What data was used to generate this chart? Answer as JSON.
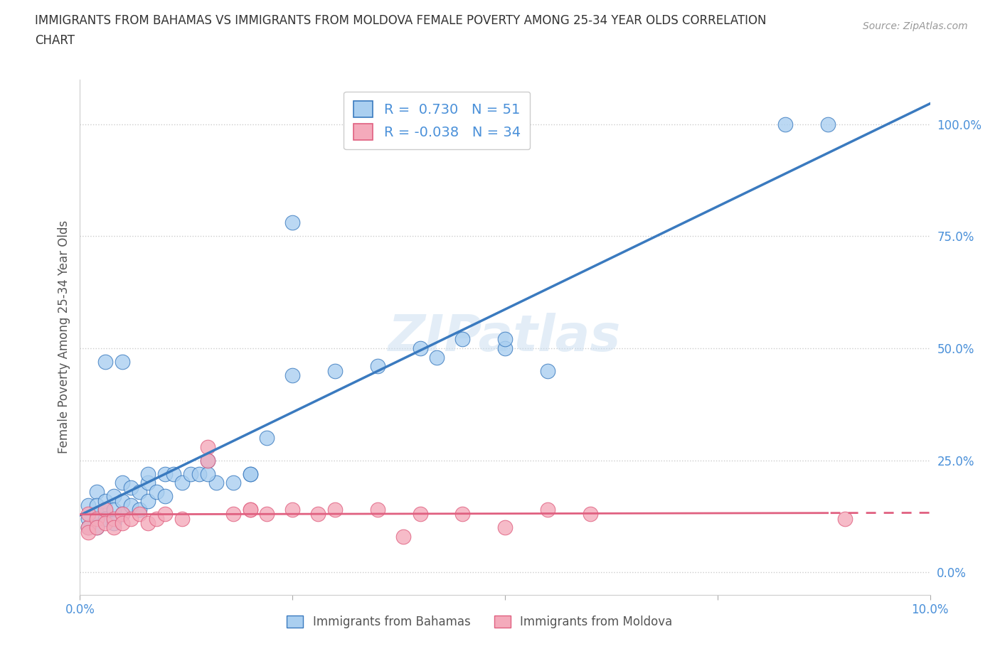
{
  "title_line1": "IMMIGRANTS FROM BAHAMAS VS IMMIGRANTS FROM MOLDOVA FEMALE POVERTY AMONG 25-34 YEAR OLDS CORRELATION",
  "title_line2": "CHART",
  "source": "Source: ZipAtlas.com",
  "ylabel": "Female Poverty Among 25-34 Year Olds",
  "xmin": 0.0,
  "xmax": 0.1,
  "ymin": -0.05,
  "ymax": 1.1,
  "yticks": [
    0.0,
    0.25,
    0.5,
    0.75,
    1.0
  ],
  "ytick_labels": [
    "0.0%",
    "25.0%",
    "50.0%",
    "75.0%",
    "100.0%"
  ],
  "xticks": [
    0.0,
    0.025,
    0.05,
    0.075,
    0.1
  ],
  "xtick_labels": [
    "0.0%",
    "",
    "",
    "",
    "10.0%"
  ],
  "r_bahamas": 0.73,
  "n_bahamas": 51,
  "r_moldova": -0.038,
  "n_moldova": 34,
  "color_bahamas": "#aacff0",
  "color_moldova": "#f4aabb",
  "line_color_bahamas": "#3a7abf",
  "line_color_moldova": "#e06080",
  "watermark": "ZIPatlas",
  "bahamas_x": [
    0.001,
    0.001,
    0.001,
    0.002,
    0.002,
    0.002,
    0.002,
    0.003,
    0.003,
    0.003,
    0.004,
    0.004,
    0.004,
    0.005,
    0.005,
    0.005,
    0.006,
    0.006,
    0.007,
    0.007,
    0.008,
    0.008,
    0.009,
    0.01,
    0.01,
    0.011,
    0.012,
    0.013,
    0.014,
    0.015,
    0.016,
    0.018,
    0.02,
    0.022,
    0.025,
    0.03,
    0.035,
    0.04,
    0.042,
    0.045,
    0.05,
    0.05,
    0.055,
    0.003,
    0.005,
    0.008,
    0.015,
    0.02,
    0.025,
    0.083,
    0.088
  ],
  "bahamas_y": [
    0.15,
    0.12,
    0.1,
    0.18,
    0.15,
    0.13,
    0.1,
    0.16,
    0.14,
    0.12,
    0.17,
    0.14,
    0.11,
    0.2,
    0.16,
    0.13,
    0.19,
    0.15,
    0.18,
    0.14,
    0.2,
    0.16,
    0.18,
    0.22,
    0.17,
    0.22,
    0.2,
    0.22,
    0.22,
    0.25,
    0.2,
    0.2,
    0.22,
    0.3,
    0.44,
    0.45,
    0.46,
    0.5,
    0.48,
    0.52,
    0.5,
    0.52,
    0.45,
    0.47,
    0.47,
    0.22,
    0.22,
    0.22,
    0.78,
    1.0,
    1.0
  ],
  "moldova_x": [
    0.001,
    0.001,
    0.001,
    0.002,
    0.002,
    0.003,
    0.003,
    0.004,
    0.004,
    0.005,
    0.005,
    0.006,
    0.007,
    0.008,
    0.009,
    0.01,
    0.012,
    0.015,
    0.018,
    0.02,
    0.022,
    0.025,
    0.028,
    0.03,
    0.035,
    0.04,
    0.045,
    0.05,
    0.055,
    0.06,
    0.015,
    0.02,
    0.038,
    0.09
  ],
  "moldova_y": [
    0.1,
    0.13,
    0.09,
    0.12,
    0.1,
    0.14,
    0.11,
    0.12,
    0.1,
    0.13,
    0.11,
    0.12,
    0.13,
    0.11,
    0.12,
    0.13,
    0.12,
    0.28,
    0.13,
    0.14,
    0.13,
    0.14,
    0.13,
    0.14,
    0.14,
    0.13,
    0.13,
    0.1,
    0.14,
    0.13,
    0.25,
    0.14,
    0.08,
    0.12
  ]
}
